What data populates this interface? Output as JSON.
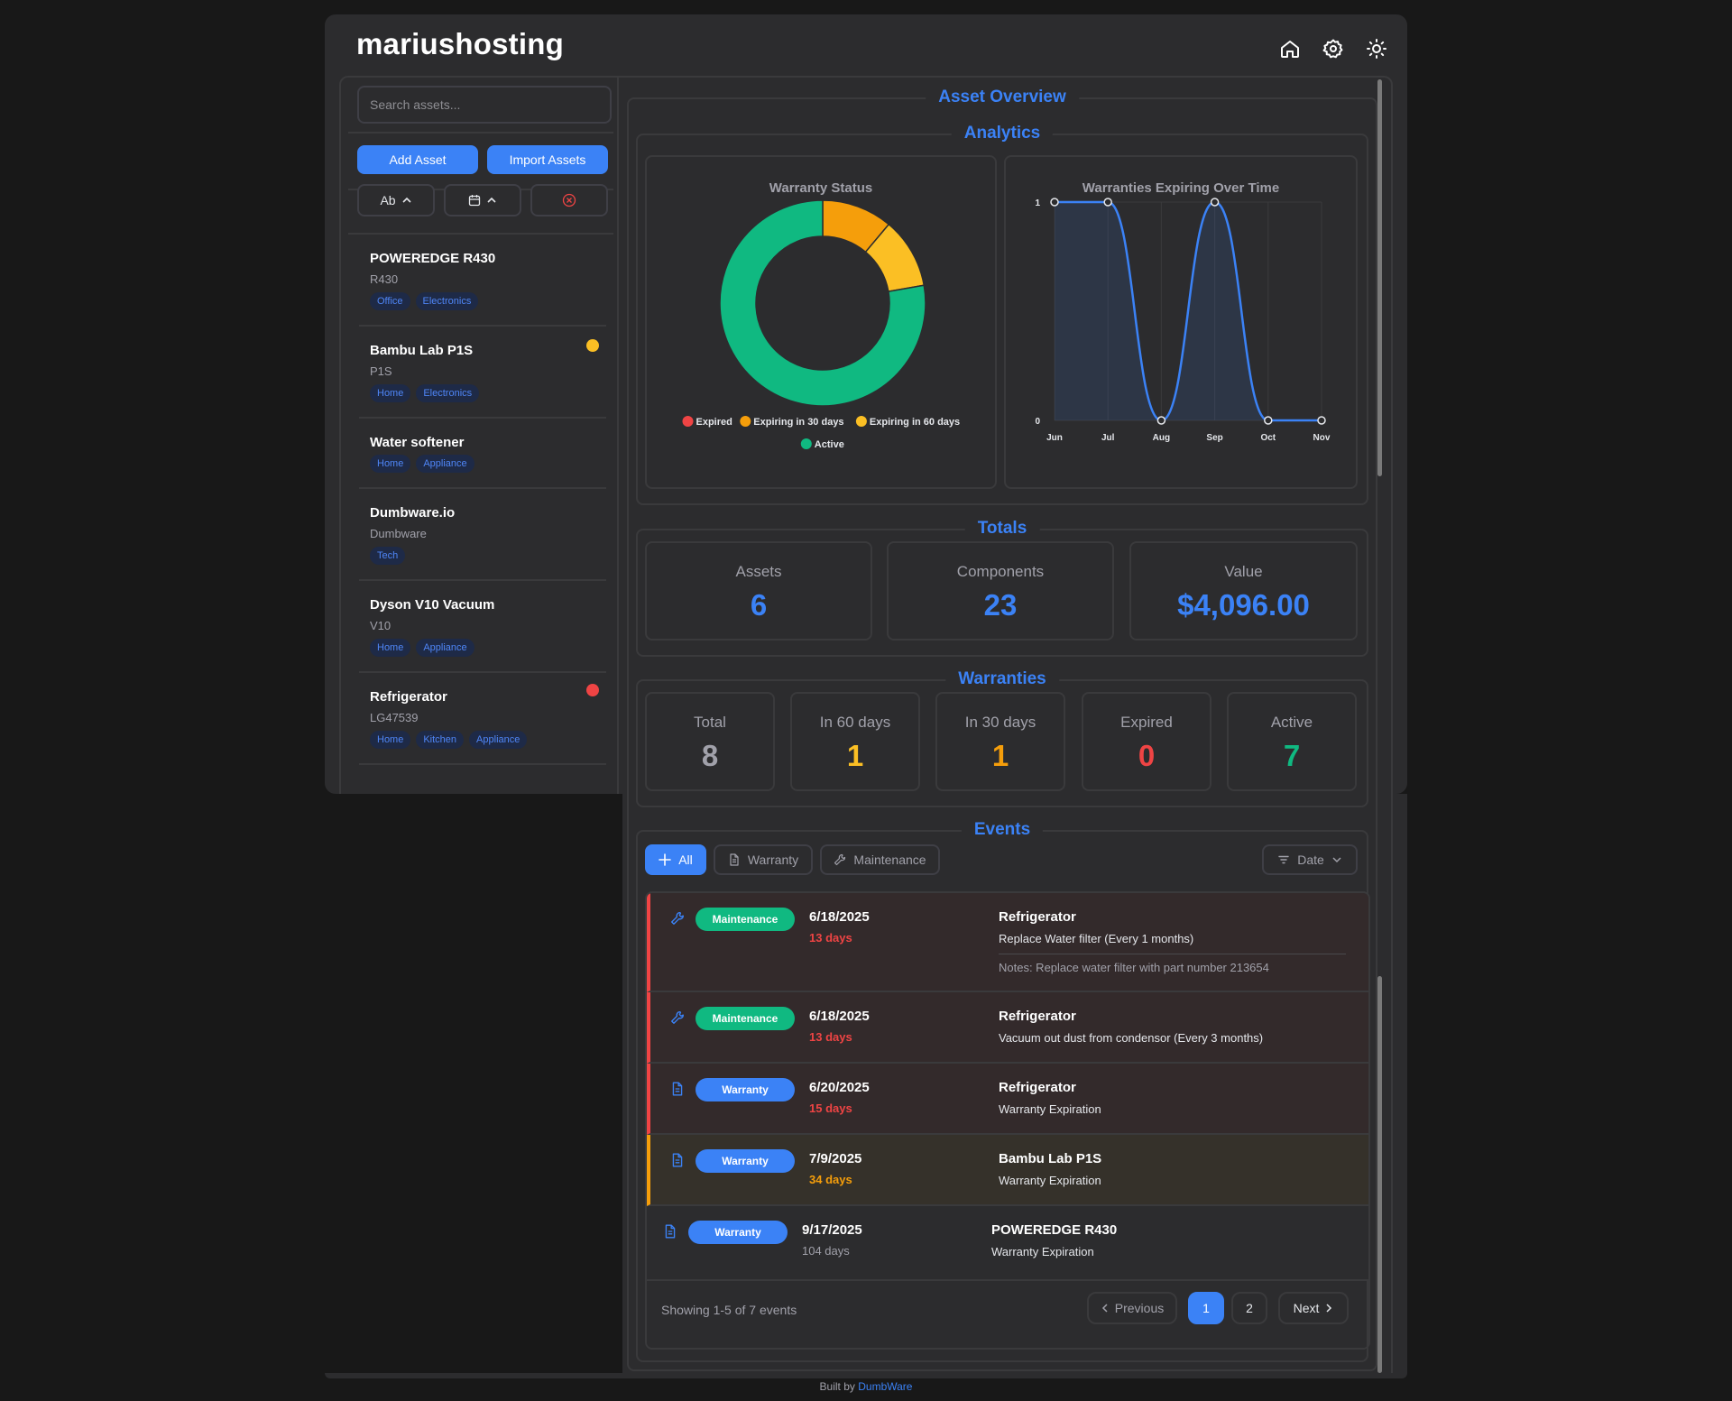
{
  "app": {
    "title": "mariushosting"
  },
  "colors": {
    "accent": "#3b82f6",
    "expired": "#ef4444",
    "warn30": "#f59e0b",
    "warn60": "#fbbf24",
    "active": "#10b981",
    "total": "#a1a1aa"
  },
  "sidebar": {
    "search_placeholder": "Search assets...",
    "add_label": "Add Asset",
    "import_label": "Import Assets",
    "sort_name_label": "Ab",
    "assets": [
      {
        "name": "POWEREDGE R430",
        "model": "R430",
        "tags": [
          "Office",
          "Electronics"
        ],
        "status": ""
      },
      {
        "name": "Bambu Lab P1S",
        "model": "P1S",
        "tags": [
          "Home",
          "Electronics"
        ],
        "status": "warning"
      },
      {
        "name": "Water softener",
        "model": "",
        "tags": [
          "Home",
          "Appliance"
        ],
        "status": ""
      },
      {
        "name": "Dumbware.io",
        "model": "Dumbware",
        "tags": [
          "Tech"
        ],
        "status": ""
      },
      {
        "name": "Dyson V10 Vacuum",
        "model": "V10",
        "tags": [
          "Home",
          "Appliance"
        ],
        "status": ""
      },
      {
        "name": "Refrigerator",
        "model": "LG47539",
        "tags": [
          "Home",
          "Kitchen",
          "Appliance"
        ],
        "status": "expired"
      }
    ]
  },
  "overview": {
    "title": "Asset Overview",
    "analytics_title": "Analytics",
    "totals_title": "Totals",
    "warranties_title": "Warranties",
    "events_title": "Events"
  },
  "chart_data": [
    {
      "type": "pie",
      "title": "Warranty Status",
      "categories": [
        "Expired",
        "Expiring in 30 days",
        "Expiring in 60 days",
        "Active"
      ],
      "values": [
        0,
        1,
        1,
        7
      ],
      "legend_position": "bottom"
    },
    {
      "type": "line",
      "title": "Warranties Expiring Over Time",
      "categories": [
        "Jun",
        "Jul",
        "Aug",
        "Sep",
        "Oct",
        "Nov"
      ],
      "values": [
        1,
        1,
        0,
        1,
        0,
        0
      ],
      "ylim": [
        0,
        1
      ],
      "yticks": [
        "0",
        "1"
      ]
    }
  ],
  "totals": [
    {
      "label": "Assets",
      "value": "6"
    },
    {
      "label": "Components",
      "value": "23"
    },
    {
      "label": "Value",
      "value": "$4,096.00"
    }
  ],
  "warranties": [
    {
      "label": "Total",
      "value": "8"
    },
    {
      "label": "In 60 days",
      "value": "1"
    },
    {
      "label": "In 30 days",
      "value": "1"
    },
    {
      "label": "Expired",
      "value": "0"
    },
    {
      "label": "Active",
      "value": "7"
    }
  ],
  "events": {
    "filters": {
      "all": "All",
      "warranty": "Warranty",
      "maintenance": "Maintenance",
      "sort": "Date"
    },
    "items": [
      {
        "type": "Maintenance",
        "date": "6/18/2025",
        "days": "13 days",
        "asset": "Refrigerator",
        "desc": "Replace Water filter (Every 1 months)",
        "notes": "Notes: Replace water filter with part number 213654"
      },
      {
        "type": "Maintenance",
        "date": "6/18/2025",
        "days": "13 days",
        "asset": "Refrigerator",
        "desc": "Vacuum out dust from condensor (Every 3 months)",
        "notes": ""
      },
      {
        "type": "Warranty",
        "date": "6/20/2025",
        "days": "15 days",
        "asset": "Refrigerator",
        "desc": "Warranty Expiration",
        "notes": ""
      },
      {
        "type": "Warranty",
        "date": "7/9/2025",
        "days": "34 days",
        "asset": "Bambu Lab P1S",
        "desc": "Warranty Expiration",
        "notes": ""
      },
      {
        "type": "Warranty",
        "date": "9/17/2025",
        "days": "104 days",
        "asset": "POWEREDGE R430",
        "desc": "Warranty Expiration",
        "notes": ""
      }
    ],
    "showing": "Showing 1-5 of 7 events",
    "prev_label": "Previous",
    "next_label": "Next",
    "pages": [
      "1",
      "2"
    ]
  },
  "footer": {
    "prefix": "Built by",
    "link": "DumbWare"
  }
}
